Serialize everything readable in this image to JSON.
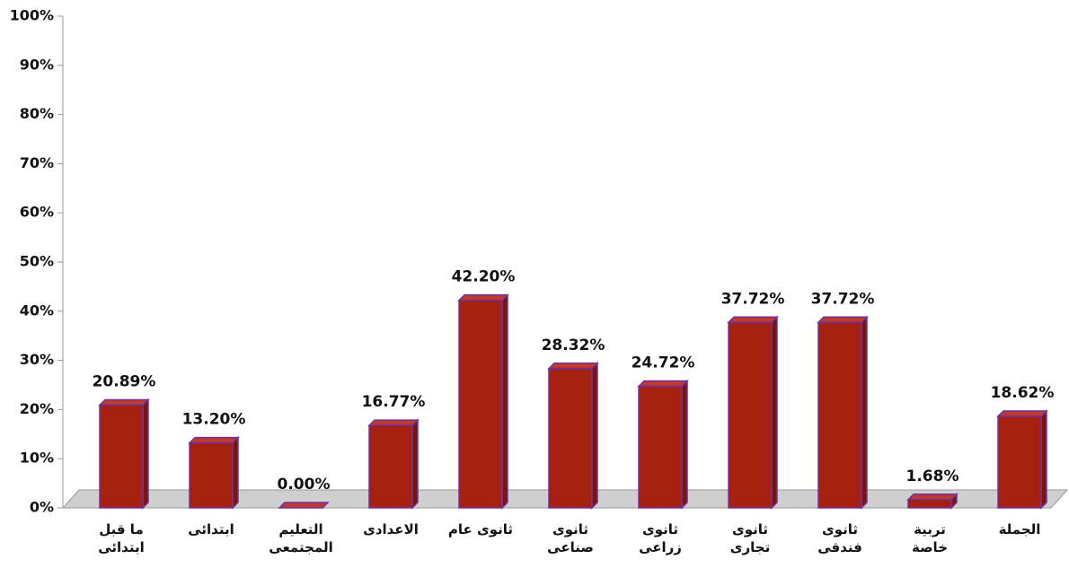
{
  "chart_data": {
    "type": "bar",
    "categories": [
      "ما قبل\nابتدائى",
      "ابتدائى",
      "التعليم\nالمجتمعى",
      "الاعدادى",
      "ثانوى عام",
      "ثانوى\nصناعى",
      "ثانوى\nزراعى",
      "ثانوى\nتجارى",
      "ثانوى\nفندقى",
      "تربية\nخاصة",
      "الجملة"
    ],
    "values": [
      20.89,
      13.2,
      0.0,
      16.77,
      42.2,
      28.32,
      24.72,
      37.72,
      37.72,
      1.68,
      18.62
    ],
    "value_labels": [
      "20.89%",
      "13.20%",
      "0.00%",
      "16.77%",
      "42.20%",
      "28.32%",
      "24.72%",
      "37.72%",
      "37.72%",
      "1.68%",
      "18.62%"
    ],
    "color": "#a5200f",
    "ylim": [
      0,
      100
    ],
    "yticks": [
      {
        "value": 0,
        "label": "0%"
      },
      {
        "value": 10,
        "label": "10%"
      },
      {
        "value": 20,
        "label": "20%"
      },
      {
        "value": 30,
        "label": "30%"
      },
      {
        "value": 40,
        "label": "40%"
      },
      {
        "value": 50,
        "label": "50%"
      },
      {
        "value": 60,
        "label": "60%"
      },
      {
        "value": 70,
        "label": "70%"
      },
      {
        "value": 80,
        "label": "80%"
      },
      {
        "value": 90,
        "label": "90%"
      },
      {
        "value": 100,
        "label": "100%"
      }
    ],
    "grid": false
  }
}
